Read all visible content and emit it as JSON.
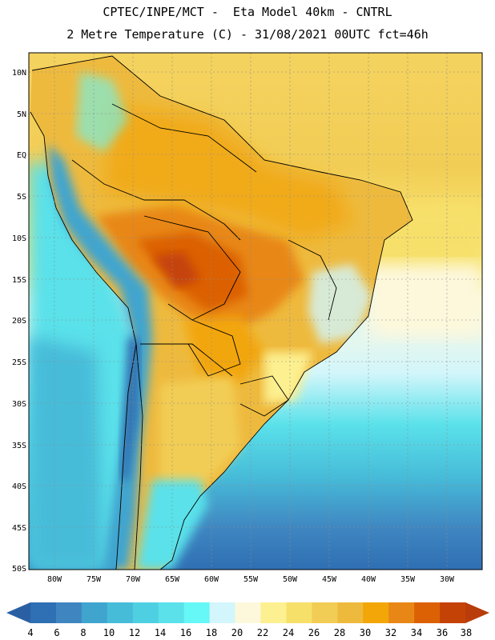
{
  "header": {
    "line1": "CPTEC/INPE/MCT -  Eta Model 40km - CNTRL",
    "line2": "2 Metre Temperature (C) - 31/08/2021 00UTC fct=46h"
  },
  "map": {
    "region": "South America",
    "lat_labels": [
      "10N",
      "5N",
      "EQ",
      "5S",
      "10S",
      "15S",
      "20S",
      "25S",
      "30S",
      "35S",
      "40S",
      "45S",
      "50S"
    ],
    "lon_labels": [
      "80W",
      "75W",
      "70W",
      "65W",
      "60W",
      "55W",
      "50W",
      "45W",
      "40W",
      "35W",
      "30W"
    ],
    "lat_range": [
      -50,
      12
    ],
    "lon_range": [
      -84,
      -27
    ]
  },
  "colorbar": {
    "labels": [
      "4",
      "6",
      "8",
      "10",
      "12",
      "14",
      "16",
      "18",
      "20",
      "22",
      "24",
      "26",
      "28",
      "30",
      "32",
      "34",
      "36",
      "38"
    ],
    "colors": [
      "#2f6fb3",
      "#3f86c1",
      "#3fa5cf",
      "#47bcd9",
      "#4fd0e2",
      "#5ae1ea",
      "#66f7f7",
      "#d2f6fb",
      "#fdf8dc",
      "#fdf090",
      "#f7e06a",
      "#f2cd55",
      "#eeba3e",
      "#f2a607",
      "#e88716",
      "#dc6105",
      "#c54207"
    ],
    "left_arrow_color": "#2a5fa3",
    "right_arrow_color": "#b83d0a"
  }
}
